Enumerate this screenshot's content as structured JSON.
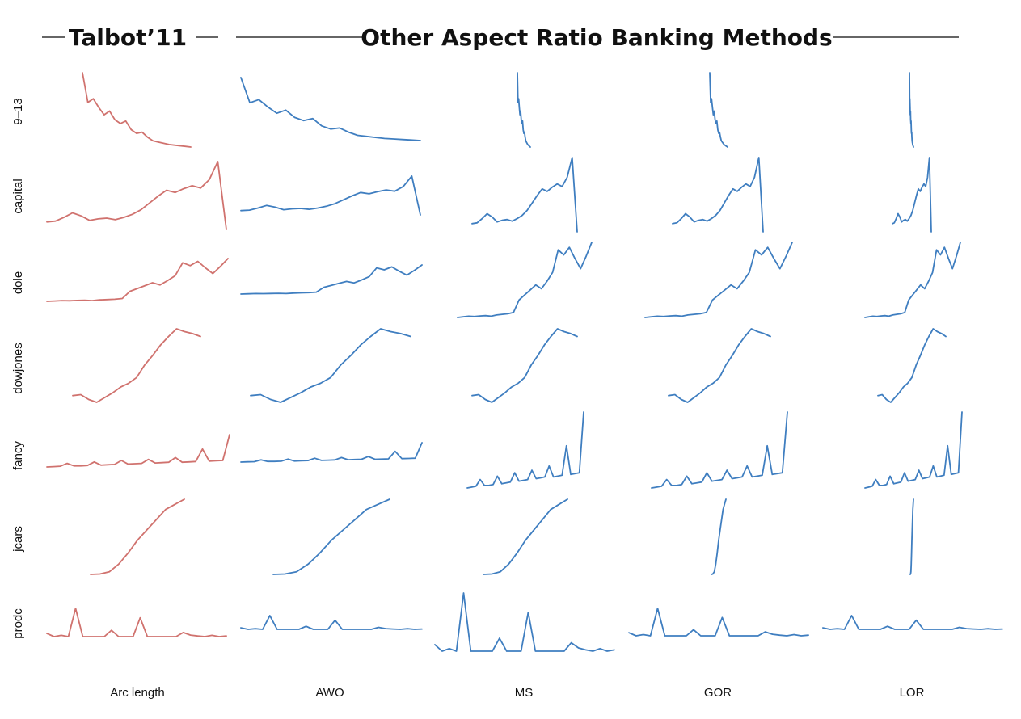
{
  "header": {
    "left_title": "Talbot’11",
    "right_title": "Other Aspect Ratio Banking Methods"
  },
  "colors": {
    "talbot": "#d0726e",
    "other": "#3f7ec0",
    "text": "#111111",
    "rule": "#333333"
  },
  "chart_data": {
    "type": "line",
    "title": "",
    "rows": [
      "9–13",
      "capital",
      "dole",
      "dowjones",
      "fancy",
      "jcars",
      "prodc"
    ],
    "columns": [
      "Arc length",
      "AWO",
      "MS",
      "GOR",
      "LOR"
    ],
    "column_groups": [
      {
        "label": "Talbot’11",
        "columns": [
          "Arc length"
        ]
      },
      {
        "label": "Other Aspect Ratio Banking Methods",
        "columns": [
          "AWO",
          "MS",
          "GOR",
          "LOR"
        ]
      }
    ],
    "series": [
      {
        "name": "9–13",
        "values": [
          10,
          7.6,
          7.9,
          7.2,
          6.6,
          6.9,
          6.2,
          5.9,
          6.1,
          5.4,
          5.1,
          5.2,
          4.8,
          4.5,
          4.4,
          4.3,
          4.2,
          4.15,
          4.1,
          4.05,
          4.0
        ]
      },
      {
        "name": "capital",
        "values": [
          2.0,
          2.1,
          2.6,
          3.2,
          2.8,
          2.2,
          2.4,
          2.5,
          2.3,
          2.6,
          3.0,
          3.6,
          4.5,
          5.4,
          6.2,
          5.9,
          6.4,
          6.8,
          6.5,
          7.6,
          10.0,
          1.0
        ]
      },
      {
        "name": "dole",
        "values": [
          1.0,
          1.05,
          1.1,
          1.08,
          1.12,
          1.15,
          1.1,
          1.2,
          1.25,
          1.3,
          1.4,
          2.4,
          2.8,
          3.2,
          3.6,
          3.3,
          3.9,
          4.6,
          6.4,
          6.0,
          6.6,
          5.7,
          4.9,
          5.9,
          7.0
        ]
      },
      {
        "name": "dowjones",
        "values": [
          3.0,
          3.1,
          2.6,
          2.3,
          2.8,
          3.3,
          3.9,
          4.3,
          4.9,
          6.2,
          7.2,
          8.3,
          9.2,
          10.0,
          9.7,
          9.5,
          9.2
        ]
      },
      {
        "name": "fancy",
        "values": [
          1.0,
          1.1,
          1.2,
          2.0,
          1.3,
          1.3,
          1.4,
          2.4,
          1.5,
          1.6,
          1.7,
          2.8,
          1.8,
          1.9,
          2.0,
          3.1,
          2.1,
          2.2,
          2.3,
          3.6,
          2.3,
          2.4,
          2.5,
          6.0,
          2.6,
          2.7,
          2.8,
          10.0
        ]
      },
      {
        "name": "jcars",
        "values": [
          1.0,
          1.05,
          1.3,
          2.2,
          3.5,
          5.0,
          6.2,
          7.4,
          8.6,
          9.2,
          9.8
        ]
      },
      {
        "name": "prodc",
        "values": [
          2.0,
          1.0,
          1.4,
          1.0,
          10.0,
          1.0,
          1.0,
          1.0,
          1.0,
          3.0,
          1.0,
          1.0,
          1.0,
          7.0,
          1.0,
          1.0,
          1.0,
          1.0,
          1.0,
          2.3,
          1.5,
          1.2,
          1.0,
          1.4,
          1.0,
          1.2
        ]
      }
    ],
    "xlabel": "",
    "ylabel": "",
    "grid": false,
    "legend": "none"
  }
}
